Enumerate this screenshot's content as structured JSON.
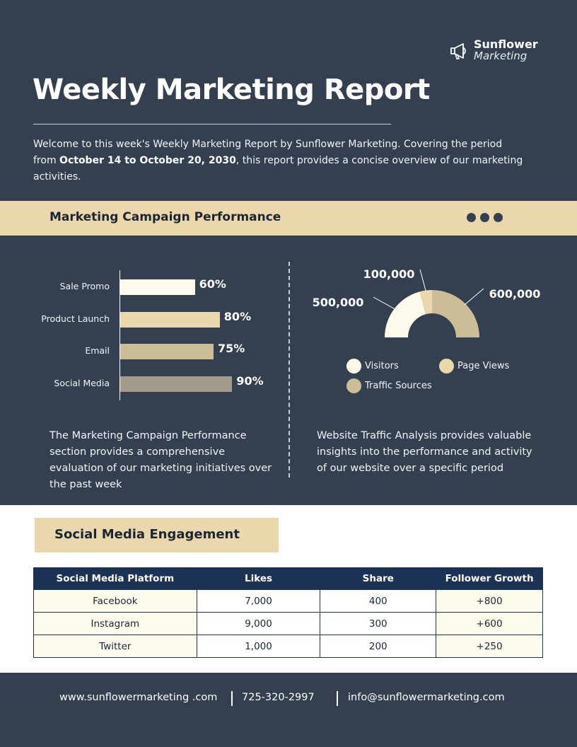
{
  "brand": {
    "name": "Sunflower",
    "sub": "Marketing",
    "icon": "megaphone-icon"
  },
  "title": "Weekly Marketing Report",
  "intro": {
    "part1": "Welcome to this week's Weekly Marketing Report by Sunflower Marketing. Covering the period from",
    "period": "October 14 to October 20, 2030",
    "part2": ", this report provides a concise overview of our marketing activities."
  },
  "campaign_section": {
    "title": "Marketing Campaign Performance",
    "description": "The Marketing Campaign Performance section provides a comprehensive evaluation of our marketing initiatives over the past week"
  },
  "traffic_section": {
    "description": "Website Traffic Analysis provides valuable insights into the performance and activity of our website over a specific period"
  },
  "colors": {
    "background": "#344050",
    "accent": "#ead8ac",
    "table_header": "#1c3355",
    "bars": [
      "#fdfaeb",
      "#ead8ac",
      "#cbbd98",
      "#a39b8b"
    ],
    "donut": [
      "#fdfaeb",
      "#ead8ac",
      "#cbbd98"
    ]
  },
  "chart_data": [
    {
      "type": "bar",
      "orientation": "horizontal",
      "categories": [
        "Sale Promo",
        "Product Launch",
        "Email",
        "Social Media"
      ],
      "values": [
        60,
        80,
        75,
        90
      ],
      "labels": [
        "60%",
        "80%",
        "75%",
        "90%"
      ],
      "xlim": [
        0,
        100
      ]
    },
    {
      "type": "pie",
      "style": "half-donut",
      "series": [
        {
          "name": "Visitors",
          "value": 500000,
          "label": "500,000"
        },
        {
          "name": "Page Views",
          "value": 100000,
          "label": "100,000"
        },
        {
          "name": "Traffic Sources",
          "value": 600000,
          "label": "600,000"
        }
      ],
      "legend": [
        "Visitors",
        "Page Views",
        "Traffic Sources"
      ]
    }
  ],
  "social": {
    "title": "Social Media Engagement",
    "headers": [
      "Social Media Platform",
      "Likes",
      "Share",
      "Follower Growth"
    ],
    "rows": [
      [
        "Facebook",
        "7,000",
        "400",
        "+800"
      ],
      [
        "Instagram",
        "9,000",
        "300",
        "+600"
      ],
      [
        "Twitter",
        "1,000",
        "200",
        "+250"
      ]
    ]
  },
  "footer": {
    "website": "www.sunflowermarketing .com",
    "phone": "725-320-2997",
    "email": "info@sunflowermarketing.com"
  }
}
